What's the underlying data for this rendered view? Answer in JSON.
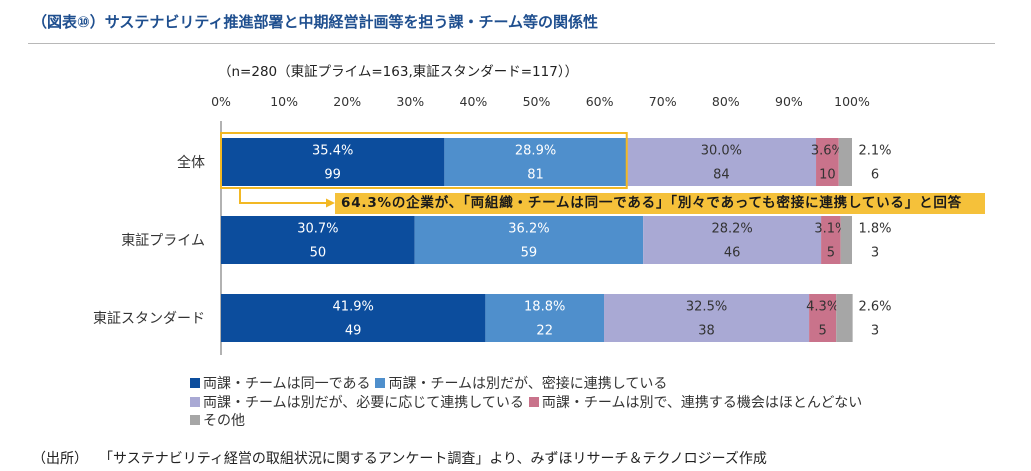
{
  "chart_data": {
    "type": "bar",
    "orientation": "horizontal",
    "stacked": true,
    "title": "（図表⑩）サステナビリティ推進部署と中期経営計画等を担う課・チーム等の関係性",
    "subtitle": "（n=280（東証プライム=163,東証スタンダード=117））",
    "xlim": [
      0,
      100
    ],
    "xticks": [
      0,
      10,
      20,
      30,
      40,
      50,
      60,
      70,
      80,
      90,
      100
    ],
    "xtick_labels": [
      "0%",
      "10%",
      "20%",
      "30%",
      "40%",
      "50%",
      "60%",
      "70%",
      "80%",
      "90%",
      "100%"
    ],
    "categories": [
      "全体",
      "東証プライム",
      "東証スタンダード"
    ],
    "series": [
      {
        "name": "両課・チームは同一である",
        "color": "#0c4d9d",
        "label_color": "#ffffff",
        "label_placement": "inside",
        "values": [
          35.4,
          30.7,
          41.9
        ],
        "counts": [
          99,
          50,
          49
        ]
      },
      {
        "name": "両課・チームは別だが、密接に連携している",
        "color": "#4f8fcc",
        "label_color": "#ffffff",
        "label_placement": "inside",
        "values": [
          28.9,
          36.2,
          18.8
        ],
        "counts": [
          81,
          59,
          22
        ]
      },
      {
        "name": "両課・チームは別だが、必要に応じて連携している",
        "color": "#a9a9d4",
        "label_color": "#333333",
        "label_placement": "inside",
        "values": [
          30.0,
          28.2,
          32.5
        ],
        "counts": [
          84,
          46,
          38
        ]
      },
      {
        "name": "両課・チームは別で、連携する機会はほとんどない",
        "color": "#c9738b",
        "label_color": "#333333",
        "label_placement": "inside",
        "values": [
          3.6,
          3.1,
          4.3
        ],
        "counts": [
          10,
          5,
          5
        ]
      },
      {
        "name": "その他",
        "color": "#a6a6a6",
        "label_color": "#333333",
        "label_placement": "outside-right",
        "values": [
          2.1,
          1.8,
          2.6
        ],
        "counts": [
          6,
          3,
          3
        ]
      }
    ],
    "legend_position": "bottom",
    "annotation": {
      "text": "64.3%の企業が、「両組織・チームは同一である」「別々であっても密接に連携している」と回答",
      "category_index": 0,
      "series_span": [
        0,
        1
      ],
      "highlight_color": "#f2b824",
      "fill_color": "#f5c13a",
      "text_color": "#1a1a1a"
    }
  },
  "source": {
    "label": "（出所）",
    "text": "「サステナビリティ経営の取組状況に関するアンケート調査」より、みずほリサーチ＆テクノロジーズ作成"
  },
  "colors": {
    "title": "#1f4f8f",
    "rule": "#b8b8b8",
    "axis": "#666666"
  }
}
